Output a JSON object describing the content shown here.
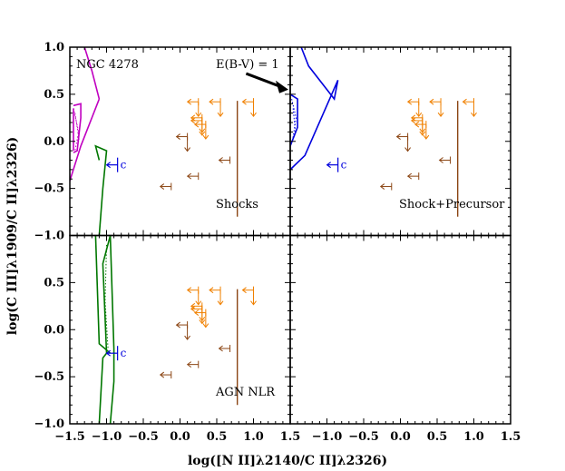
{
  "chart_data": {
    "type": "line",
    "layout": "2x2 panels, shared axes",
    "xlabel": "log([N II]λ2140/C II]λ2326)",
    "ylabel": "log(C III]λ1909/C II]λ2326)",
    "xlim": [
      -1.5,
      1.5
    ],
    "ylim": [
      -1.0,
      1.0
    ],
    "xticks": [
      -1.5,
      -1.0,
      -0.5,
      0.0,
      0.5,
      1.0,
      1.5
    ],
    "yticks": [
      -1.0,
      -0.5,
      0.0,
      0.5,
      1.0
    ],
    "xtick_labels": [
      "−1.5",
      "−1.0",
      "−0.5",
      "0.0",
      "0.5",
      "1.0",
      "1.5"
    ],
    "ytick_labels": [
      "−1.0",
      "−0.5",
      "0.0",
      "0.5",
      "1.0"
    ],
    "object_label": "NGC 4278",
    "extinction_label": "E(B-V) = 1",
    "colors": {
      "shock": "#c000c0",
      "precursor": "#0000dd",
      "agn": "#007700",
      "limits_orange": "#f08000",
      "limits_brown": "#8b4513",
      "c_marker": "#0000dd"
    },
    "c_marker_label": "c",
    "panels": [
      {
        "label": "Shocks",
        "model_color": "shock",
        "model_series": [
          {
            "x": [
              -1.5,
              -1.35,
              -1.1
            ],
            "y": [
              -0.42,
              -0.05,
              0.45
            ]
          },
          {
            "x": [
              -1.1,
              -1.2,
              -1.3
            ],
            "y": [
              0.45,
              0.75,
              1.0
            ]
          },
          {
            "x": [
              -1.45,
              -1.35,
              -1.35,
              -1.4,
              -1.45
            ],
            "y": [
              0.38,
              0.4,
              0.25,
              -0.1,
              -0.12
            ]
          },
          {
            "x": [
              -1.45,
              -1.45
            ],
            "y": [
              0.35,
              -0.1
            ]
          }
        ],
        "model_dotted": [
          {
            "x": [
              -1.45,
              -1.38,
              -1.43
            ],
            "y": [
              0.35,
              0.1,
              -0.1
            ]
          },
          {
            "x": [
              -1.43,
              -1.37
            ],
            "y": [
              0.3,
              0.0
            ]
          }
        ]
      },
      {
        "label": "Shock+Precursor",
        "model_color": "precursor",
        "model_series": [
          {
            "x": [
              -1.5,
              -1.3,
              -0.85,
              -0.9,
              -1.25,
              -1.35
            ],
            "y": [
              -0.3,
              -0.15,
              0.65,
              0.45,
              0.8,
              1.0
            ]
          },
          {
            "x": [
              -1.5,
              -1.4,
              -1.4,
              -1.5
            ],
            "y": [
              0.5,
              0.45,
              0.15,
              -0.05
            ]
          }
        ],
        "model_dotted": [
          {
            "x": [
              -1.48,
              -1.42,
              -1.47
            ],
            "y": [
              0.45,
              0.25,
              0.0
            ]
          },
          {
            "x": [
              -1.46,
              -1.43
            ],
            "y": [
              0.35,
              0.1
            ]
          }
        ]
      },
      {
        "label": "AGN NLR",
        "model_color": "agn",
        "model_series": [
          {
            "x": [
              -1.1,
              -1.05,
              -1.0,
              -1.05,
              -0.95,
              -0.9,
              -0.9,
              -0.95
            ],
            "y": [
              -1.0,
              -0.3,
              -0.25,
              0.7,
              1.0,
              -0.2,
              -0.55,
              -1.0
            ]
          },
          {
            "x": [
              -1.15,
              -1.1,
              -0.95
            ],
            "y": [
              1.0,
              -0.15,
              -0.25
            ]
          }
        ],
        "model_dotted": [
          {
            "x": [
              -1.0,
              -1.02,
              -0.98
            ],
            "y": [
              0.9,
              0.3,
              -0.2
            ]
          }
        ]
      },
      {
        "label": "",
        "model_color": "",
        "model_series": [],
        "model_dotted": []
      }
    ],
    "panel0_overlay": {
      "agn_series": [
        {
          "x": [
            -1.1,
            -1.05,
            -1.0,
            -1.15,
            -1.1
          ],
          "y": [
            -1.0,
            -0.5,
            -0.1,
            -0.05,
            -0.2
          ]
        }
      ]
    },
    "c_marker_position": {
      "x": -0.85,
      "y": -0.25
    },
    "upper_limits": [
      {
        "x": 0.25,
        "y": 0.42,
        "dir": "down-left",
        "color": "limits_orange"
      },
      {
        "x": 0.55,
        "y": 0.42,
        "dir": "down-left",
        "color": "limits_orange"
      },
      {
        "x": 0.3,
        "y": 0.25,
        "dir": "down-left",
        "color": "limits_orange"
      },
      {
        "x": 0.35,
        "y": 0.18,
        "dir": "down-left",
        "color": "limits_orange"
      },
      {
        "x": 0.3,
        "y": 0.22,
        "dir": "down-left",
        "color": "limits_orange"
      },
      {
        "x": 1.0,
        "y": 0.42,
        "dir": "down-left",
        "color": "limits_orange"
      },
      {
        "x": 0.1,
        "y": 0.05,
        "dir": "down-left",
        "color": "limits_brown"
      },
      {
        "x": 0.68,
        "y": -0.2,
        "dir": "left",
        "color": "limits_brown"
      },
      {
        "x": 0.25,
        "y": -0.37,
        "dir": "left",
        "color": "limits_brown"
      },
      {
        "x": -0.12,
        "y": -0.48,
        "dir": "left",
        "color": "limits_brown"
      }
    ],
    "vertical_range": {
      "x": 0.78,
      "y": [
        -0.8,
        0.43
      ],
      "color": "limits_brown"
    }
  }
}
